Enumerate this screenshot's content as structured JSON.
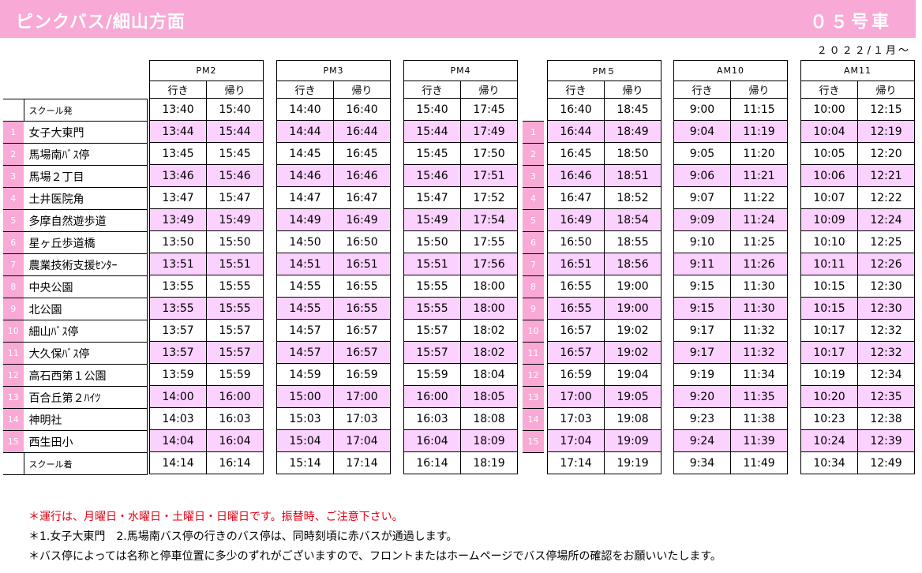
{
  "header": {
    "title": "ピンクバス/細山方面",
    "car": "０５号車",
    "date": "２０２２/１月～"
  },
  "stops": [
    {
      "num": "",
      "name": "スクール発"
    },
    {
      "num": "1",
      "name": "女子大東門"
    },
    {
      "num": "2",
      "name": "馬場南ﾊﾞｽ停"
    },
    {
      "num": "3",
      "name": "馬場２丁目"
    },
    {
      "num": "4",
      "name": "土井医院角"
    },
    {
      "num": "5",
      "name": "多摩自然遊歩道"
    },
    {
      "num": "6",
      "name": "星ヶ丘歩道橋"
    },
    {
      "num": "7",
      "name": "農業技術支援ｾﾝﾀｰ"
    },
    {
      "num": "8",
      "name": "中央公園"
    },
    {
      "num": "9",
      "name": "北公園"
    },
    {
      "num": "10",
      "name": "細山ﾊﾞｽ停"
    },
    {
      "num": "11",
      "name": "大久保ﾊﾞｽ停"
    },
    {
      "num": "12",
      "name": "高石西第１公園"
    },
    {
      "num": "13",
      "name": "百合丘第２ﾊｲﾂ"
    },
    {
      "num": "14",
      "name": "神明社"
    },
    {
      "num": "15",
      "name": "西生田小"
    },
    {
      "num": "",
      "name": "スクール着"
    }
  ],
  "dir_labels": {
    "go": "行き",
    "back": "帰り"
  },
  "blocks": [
    {
      "label": "PM2",
      "go": [
        "13:40",
        "13:44",
        "13:45",
        "13:46",
        "13:47",
        "13:49",
        "13:50",
        "13:51",
        "13:55",
        "13:55",
        "13:57",
        "13:57",
        "13:59",
        "14:00",
        "14:03",
        "14:04",
        "14:14"
      ],
      "back": [
        "15:40",
        "15:44",
        "15:45",
        "15:46",
        "15:47",
        "15:49",
        "15:50",
        "15:51",
        "15:55",
        "15:55",
        "15:57",
        "15:57",
        "15:59",
        "16:00",
        "16:03",
        "16:04",
        "16:14"
      ]
    },
    {
      "label": "PM3",
      "go": [
        "14:40",
        "14:44",
        "14:45",
        "14:46",
        "14:47",
        "14:49",
        "14:50",
        "14:51",
        "14:55",
        "14:55",
        "14:57",
        "14:57",
        "14:59",
        "15:00",
        "15:03",
        "15:04",
        "15:14"
      ],
      "back": [
        "16:40",
        "16:44",
        "16:45",
        "16:46",
        "16:47",
        "16:49",
        "16:50",
        "16:51",
        "16:55",
        "16:55",
        "16:57",
        "16:57",
        "16:59",
        "17:00",
        "17:03",
        "17:04",
        "17:14"
      ]
    },
    {
      "label": "PM4",
      "go": [
        "15:40",
        "15:44",
        "15:45",
        "15:46",
        "15:47",
        "15:49",
        "15:50",
        "15:51",
        "15:55",
        "15:55",
        "15:57",
        "15:57",
        "15:59",
        "16:00",
        "16:03",
        "16:04",
        "16:14"
      ],
      "back": [
        "17:45",
        "17:49",
        "17:50",
        "17:51",
        "17:52",
        "17:54",
        "17:55",
        "17:56",
        "18:00",
        "18:00",
        "18:02",
        "18:02",
        "18:04",
        "18:05",
        "18:08",
        "18:09",
        "18:19"
      ]
    },
    {
      "label": "PM５",
      "go": [
        "16:40",
        "16:44",
        "16:45",
        "16:46",
        "16:47",
        "16:49",
        "16:50",
        "16:51",
        "16:55",
        "16:55",
        "16:57",
        "16:57",
        "16:59",
        "17:00",
        "17:03",
        "17:04",
        "17:14"
      ],
      "back": [
        "18:45",
        "18:49",
        "18:50",
        "18:51",
        "18:52",
        "18:54",
        "18:55",
        "18:56",
        "19:00",
        "19:00",
        "19:02",
        "19:02",
        "19:04",
        "19:05",
        "19:08",
        "19:09",
        "19:19"
      ]
    },
    {
      "label": "AM10",
      "go": [
        "9:00",
        "9:04",
        "9:05",
        "9:06",
        "9:07",
        "9:09",
        "9:10",
        "9:11",
        "9:15",
        "9:15",
        "9:17",
        "9:17",
        "9:19",
        "9:20",
        "9:23",
        "9:24",
        "9:34"
      ],
      "back": [
        "11:15",
        "11:19",
        "11:20",
        "11:21",
        "11:22",
        "11:24",
        "11:25",
        "11:26",
        "11:30",
        "11:30",
        "11:32",
        "11:32",
        "11:34",
        "11:35",
        "11:38",
        "11:39",
        "11:49"
      ]
    },
    {
      "label": "AM11",
      "go": [
        "10:00",
        "10:04",
        "10:05",
        "10:06",
        "10:07",
        "10:09",
        "10:10",
        "10:11",
        "10:15",
        "10:15",
        "10:17",
        "10:17",
        "10:19",
        "10:20",
        "10:23",
        "10:24",
        "10:34"
      ],
      "back": [
        "12:15",
        "12:19",
        "12:20",
        "12:21",
        "12:22",
        "12:24",
        "12:25",
        "12:26",
        "12:30",
        "12:30",
        "12:32",
        "12:32",
        "12:34",
        "12:35",
        "12:38",
        "12:39",
        "12:49"
      ]
    }
  ],
  "notes": [
    "＊運行は、月曜日・水曜日・土曜日・日曜日です。振替時、ご注意下さい。",
    "＊1.女子大東門　2.馬場南バス停の行きのバス停は、同時刻頃に赤バスが通過します。",
    "＊バス停によっては名称と停車位置に多少のずれがございますので、フロントまたはホームページでバス停場所の確認をお願いいたします。"
  ],
  "colors": {
    "header_bg": "#f9a9d6",
    "row_highlight": "#fbd1ff",
    "note_red": "#e60012"
  }
}
